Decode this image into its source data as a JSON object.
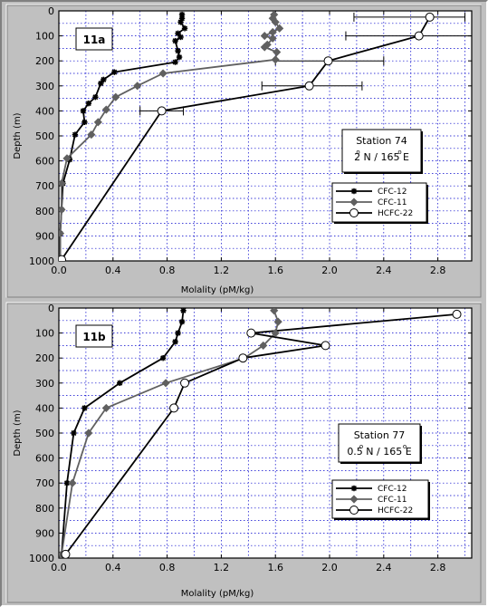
{
  "chart_data": [
    {
      "type": "line",
      "panel_label": "11a",
      "xlabel": "Molality   (pM/kg)",
      "ylabel": "Depth   (m)",
      "xlim": [
        0,
        3.05
      ],
      "ylim": [
        1000,
        0
      ],
      "x_tick_labels": [
        "0.0",
        "0.4",
        "0.8",
        "1.2",
        "1.6",
        "2.0",
        "2.4",
        "2.8"
      ],
      "y_tick_labels": [
        "0",
        "100",
        "200",
        "300",
        "400",
        "500",
        "600",
        "700",
        "800",
        "900",
        "1000"
      ],
      "grid": true,
      "station": {
        "line1": "Station 74",
        "line2_deg": "o",
        "line2": "2  N / 165   E"
      },
      "legend": [
        "CFC-12",
        "CFC-11",
        "HCFC-22"
      ],
      "series": [
        {
          "name": "CFC-12",
          "color": "#000000",
          "marker": "asterisk",
          "points": [
            [
              0.91,
              15
            ],
            [
              0.91,
              30
            ],
            [
              0.9,
              45
            ],
            [
              0.93,
              70
            ],
            [
              0.88,
              90
            ],
            [
              0.9,
              105
            ],
            [
              0.86,
              120
            ],
            [
              0.88,
              160
            ],
            [
              0.89,
              185
            ],
            [
              0.86,
              205
            ],
            [
              0.41,
              245
            ],
            [
              0.33,
              275
            ],
            [
              0.31,
              290
            ],
            [
              0.27,
              345
            ],
            [
              0.22,
              370
            ],
            [
              0.18,
              400
            ],
            [
              0.19,
              445
            ],
            [
              0.12,
              495
            ],
            [
              0.08,
              595
            ],
            [
              0.03,
              690
            ],
            [
              0.02,
              795
            ],
            [
              0.01,
              890
            ],
            [
              0.01,
              990
            ]
          ]
        },
        {
          "name": "CFC-11",
          "color": "#606060",
          "marker": "diamond",
          "points": [
            [
              1.59,
              15
            ],
            [
              1.58,
              30
            ],
            [
              1.6,
              45
            ],
            [
              1.63,
              70
            ],
            [
              1.58,
              85
            ],
            [
              1.52,
              100
            ],
            [
              1.58,
              110
            ],
            [
              1.54,
              135
            ],
            [
              1.52,
              145
            ],
            [
              1.61,
              165
            ],
            [
              1.6,
              195
            ],
            [
              0.77,
              250
            ],
            [
              0.58,
              300
            ],
            [
              0.42,
              345
            ],
            [
              0.35,
              395
            ],
            [
              0.29,
              445
            ],
            [
              0.24,
              495
            ],
            [
              0.06,
              590
            ],
            [
              0.02,
              690
            ],
            [
              0.02,
              795
            ],
            [
              0.01,
              890
            ],
            [
              0.01,
              990
            ]
          ]
        },
        {
          "name": "HCFC-22",
          "color": "#000000",
          "marker": "circle",
          "points": [
            [
              2.74,
              25
            ],
            [
              2.66,
              100
            ],
            [
              1.99,
              200
            ],
            [
              1.85,
              300
            ],
            [
              0.76,
              400
            ],
            [
              0.02,
              995
            ]
          ],
          "errors": [
            [
              2.18,
              3.0
            ],
            [
              2.12,
              3.05
            ],
            [
              1.6,
              2.4
            ],
            [
              1.5,
              2.24
            ],
            [
              0.6,
              0.92
            ],
            null
          ]
        }
      ]
    },
    {
      "type": "line",
      "panel_label": "11b",
      "xlabel": "Molality   (pM/kg)",
      "ylabel": "Depth   (m)",
      "xlim": [
        0,
        3.05
      ],
      "ylim": [
        1000,
        0
      ],
      "x_tick_labels": [
        "0.0",
        "0.4",
        "0.8",
        "1.2",
        "1.6",
        "2.0",
        "2.4",
        "2.8"
      ],
      "y_tick_labels": [
        "0",
        "100",
        "200",
        "300",
        "400",
        "500",
        "600",
        "700",
        "800",
        "900",
        "1000"
      ],
      "grid": true,
      "station": {
        "line1": "Station 77",
        "line2_deg": "o",
        "line2": "0.5  N / 165   E"
      },
      "legend": [
        "CFC-12",
        "CFC-11",
        "HCFC-22"
      ],
      "series": [
        {
          "name": "CFC-12",
          "color": "#000000",
          "marker": "asterisk",
          "points": [
            [
              0.92,
              10
            ],
            [
              0.91,
              55
            ],
            [
              0.88,
              100
            ],
            [
              0.86,
              135
            ],
            [
              0.77,
              200
            ],
            [
              0.45,
              300
            ],
            [
              0.19,
              400
            ],
            [
              0.11,
              500
            ],
            [
              0.06,
              700
            ],
            [
              0.02,
              985
            ]
          ]
        },
        {
          "name": "CFC-11",
          "color": "#606060",
          "marker": "diamond",
          "points": [
            [
              1.59,
              10
            ],
            [
              1.62,
              55
            ],
            [
              1.6,
              100
            ],
            [
              1.51,
              150
            ],
            [
              1.37,
              200
            ],
            [
              0.79,
              300
            ],
            [
              0.35,
              400
            ],
            [
              0.22,
              500
            ],
            [
              0.1,
              700
            ],
            [
              0.02,
              985
            ]
          ]
        },
        {
          "name": "HCFC-22",
          "color": "#000000",
          "marker": "circle",
          "points": [
            [
              2.94,
              25
            ],
            [
              1.42,
              100
            ],
            [
              1.97,
              150
            ],
            [
              1.36,
              200
            ],
            [
              0.93,
              300
            ],
            [
              0.85,
              400
            ],
            [
              0.05,
              985
            ]
          ]
        }
      ]
    }
  ]
}
